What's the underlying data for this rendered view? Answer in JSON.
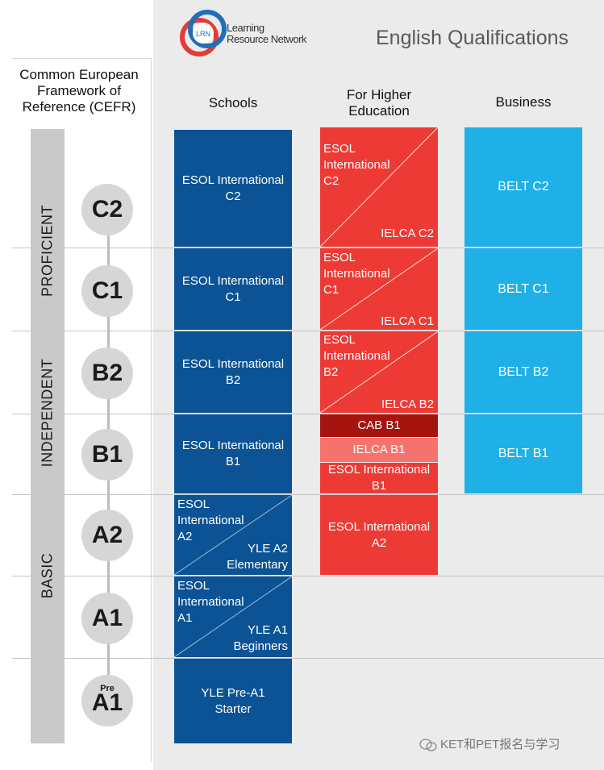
{
  "header": {
    "logo_badge": "LRN",
    "logo_line1": "Learning",
    "logo_line2": "Resource Network",
    "title": "English Qualifications"
  },
  "cefr": {
    "title_line1": "Common European",
    "title_line2": "Framework of",
    "title_line3": "Reference (CEFR)",
    "bands": [
      "PROFICIENT",
      "INDEPENDENT",
      "BASIC"
    ],
    "levels": [
      {
        "pre": "",
        "label": "C2"
      },
      {
        "pre": "",
        "label": "C1"
      },
      {
        "pre": "",
        "label": "B2"
      },
      {
        "pre": "",
        "label": "B1"
      },
      {
        "pre": "",
        "label": "A2"
      },
      {
        "pre": "",
        "label": "A1"
      },
      {
        "pre": "Pre",
        "label": "A1"
      }
    ]
  },
  "columns": {
    "schools": "Schools",
    "higher_line1": "For Higher",
    "higher_line2": "Education",
    "business": "Business"
  },
  "schools": {
    "c2": [
      "ESOL International",
      "C2"
    ],
    "c1": [
      "ESOL International",
      "C1"
    ],
    "b2": [
      "ESOL International",
      "B2"
    ],
    "b1": [
      "ESOL International",
      "B1"
    ],
    "a2_top": [
      "ESOL",
      "International",
      "A2"
    ],
    "a2_bottom": [
      "YLE A2",
      "Elementary"
    ],
    "a1_top": [
      "ESOL",
      "International",
      "A1"
    ],
    "a1_bottom": [
      "YLE A1",
      "Beginners"
    ],
    "prea1": [
      "YLE Pre-A1",
      "Starter"
    ]
  },
  "higher": {
    "c2_top": [
      "ESOL",
      "International",
      "C2"
    ],
    "c2_bottom": "IELCA C2",
    "c1_top": [
      "ESOL",
      "International",
      "C1"
    ],
    "c1_bottom": "IELCA C1",
    "b2_top": [
      "ESOL",
      "International",
      "B2"
    ],
    "b2_bottom": "IELCA B2",
    "b1_cab": "CAB B1",
    "b1_ielca": "IELCA B1",
    "b1_esol": [
      "ESOL International",
      "B1"
    ],
    "a2": [
      "ESOL International",
      "A2"
    ]
  },
  "business": {
    "c2": "BELT C2",
    "c1": "BELT C1",
    "b2": "BELT B2",
    "b1": "BELT B1"
  },
  "watermark": "KET和PET报名与学习",
  "colors": {
    "schools": "#0b5395",
    "higher": "#ee3a35",
    "higher_dark": "#a5140e",
    "higher_light": "#f5736c",
    "business": "#1fb0e8",
    "background": "#ebebeb"
  }
}
